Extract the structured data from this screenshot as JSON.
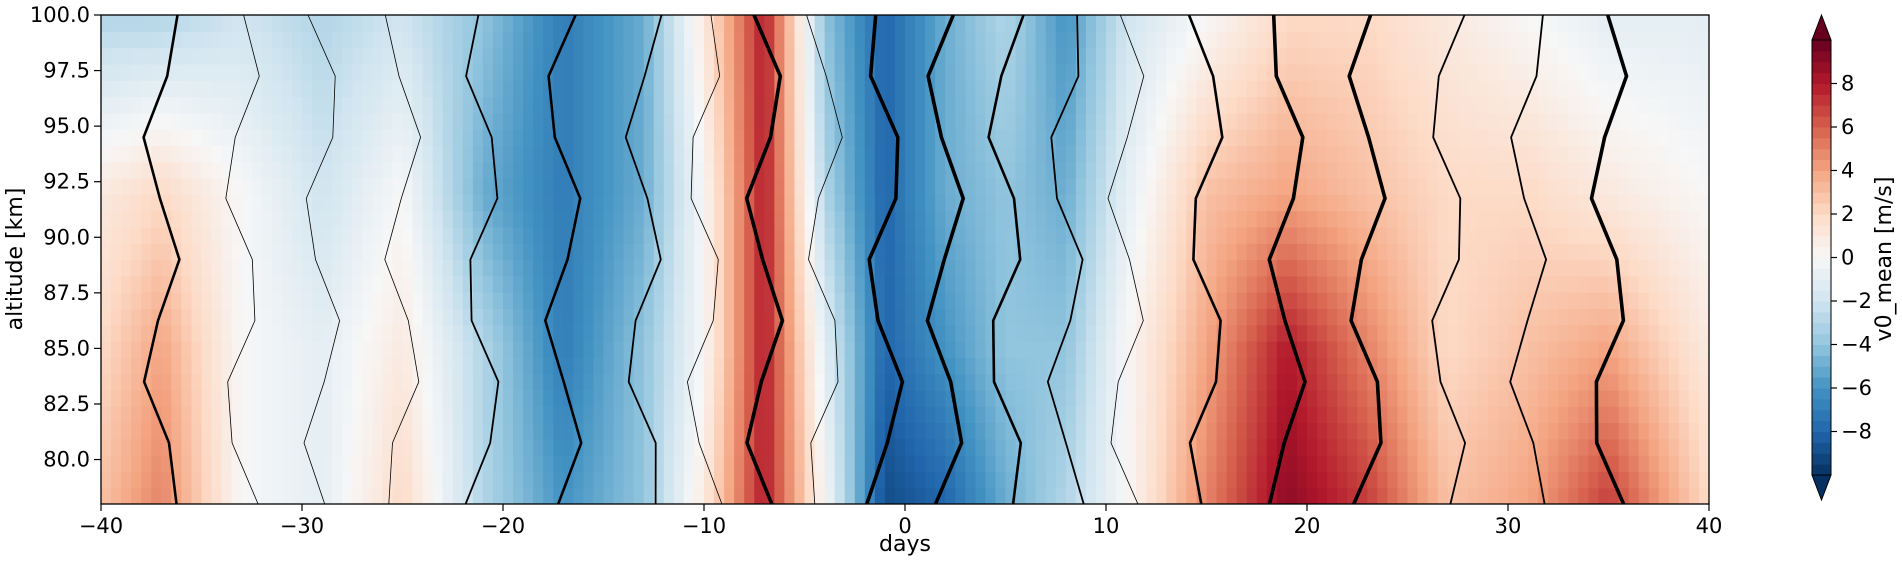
{
  "chart_data": {
    "type": "heatmap",
    "title": "",
    "xlabel": "days",
    "ylabel": "altitude [km]",
    "xlim": [
      -40,
      40
    ],
    "ylim": [
      78,
      100
    ],
    "x_ticks": [
      "−40",
      "−30",
      "−20",
      "−10",
      "0",
      "10",
      "20",
      "30",
      "40"
    ],
    "y_ticks": [
      "80.0",
      "82.5",
      "85.0",
      "87.5",
      "90.0",
      "92.5",
      "95.0",
      "97.5",
      "100.0"
    ],
    "colormap": "RdBu_r",
    "colorbar": {
      "label": "v0_mean [m/s]",
      "range": [
        -10,
        10
      ],
      "extend": "both",
      "ticks": [
        "8",
        "6",
        "4",
        "2",
        "0",
        "−2",
        "−4",
        "−6",
        "−8"
      ]
    },
    "x": [
      -40,
      -37,
      -33,
      -29,
      -25,
      -21,
      -17,
      -13,
      -10,
      -7,
      -4,
      -1,
      2,
      5,
      8,
      11,
      15,
      19,
      23,
      27,
      31,
      35,
      40
    ],
    "y": [
      78,
      85,
      92,
      100
    ],
    "z": [
      [
        3,
        5,
        0,
        -1,
        2,
        -3,
        -6,
        -4,
        1,
        8,
        0,
        -9,
        -8,
        -5,
        -3,
        0,
        5,
        9,
        7,
        3,
        4,
        7,
        2
      ],
      [
        2,
        4,
        0,
        -1,
        1,
        -3,
        -7,
        -4,
        0,
        8,
        -1,
        -8,
        -6,
        -4,
        -4,
        0,
        4,
        8,
        5,
        2,
        3,
        4,
        1
      ],
      [
        1,
        2,
        0,
        -2,
        0,
        -5,
        -7,
        -5,
        0,
        8,
        -3,
        -8,
        -5,
        -4,
        -5,
        -1,
        3,
        4,
        3,
        2,
        2,
        1,
        0
      ],
      [
        -3,
        -3,
        -2,
        -3,
        -2,
        -4,
        -7,
        -5,
        1,
        8,
        -4,
        -8,
        -5,
        -3,
        -6,
        -2,
        0,
        2,
        2,
        1,
        0,
        -1,
        -1
      ]
    ],
    "contour_overlay": "black contour lines (line width scaled by magnitude)"
  }
}
